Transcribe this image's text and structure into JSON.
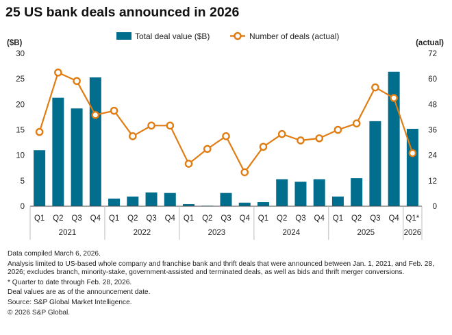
{
  "colors": {
    "bar": "#006E8C",
    "line": "#E07C12",
    "axis": "#444444",
    "text": "#222222"
  },
  "chart_data": {
    "type": "bar",
    "title": "25 US bank deals announced in 2026",
    "left_axis_label": "($B)",
    "right_axis_label": "(actual)",
    "left_ylim": [
      0,
      30
    ],
    "left_ticks": [
      "0",
      "5",
      "10",
      "15",
      "20",
      "25",
      "30"
    ],
    "right_ylim": [
      0,
      72
    ],
    "right_ticks": [
      "0",
      "12",
      "24",
      "36",
      "48",
      "60",
      "72"
    ],
    "grid": false,
    "legend_position": "top-center",
    "categories": [
      "Q1",
      "Q2",
      "Q3",
      "Q4",
      "Q1",
      "Q2",
      "Q3",
      "Q4",
      "Q1",
      "Q2",
      "Q3",
      "Q4",
      "Q1",
      "Q2",
      "Q3",
      "Q4",
      "Q1",
      "Q2",
      "Q3",
      "Q4",
      "Q1*"
    ],
    "year_groups": [
      {
        "label": "2021",
        "count": 4
      },
      {
        "label": "2022",
        "count": 4
      },
      {
        "label": "2023",
        "count": 4
      },
      {
        "label": "2024",
        "count": 4
      },
      {
        "label": "2025",
        "count": 4
      },
      {
        "label": "2026",
        "count": 1
      }
    ],
    "series": [
      {
        "name": "Total deal value ($B)",
        "type": "bar",
        "axis": "left",
        "values": [
          11.0,
          21.3,
          19.2,
          25.3,
          1.5,
          1.9,
          2.7,
          2.6,
          0.4,
          0.1,
          2.6,
          0.7,
          0.8,
          5.3,
          4.8,
          5.3,
          1.9,
          5.5,
          16.7,
          26.4,
          15.2
        ]
      },
      {
        "name": "Number of deals (actual)",
        "type": "line",
        "axis": "right",
        "values": [
          35,
          63,
          59,
          43,
          45,
          33,
          38,
          38,
          20,
          27,
          33,
          16,
          28,
          34,
          31,
          32,
          36,
          39,
          56,
          51,
          25
        ]
      }
    ]
  },
  "notes": [
    "Data compiled March 6, 2026.",
    "Analysis limited to US-based whole company and franchise bank and thrift deals that were announced between Jan. 1, 2021, and Feb. 28, 2026; excludes branch, minority-stake, government-assisted and terminated deals, as well as bids and thrift merger conversions.",
    "* Quarter to date through Feb. 28, 2026.",
    "Deal values are as of the announcement date.",
    "Source: S&P Global Market Intelligence.",
    "© 2026 S&P Global."
  ]
}
